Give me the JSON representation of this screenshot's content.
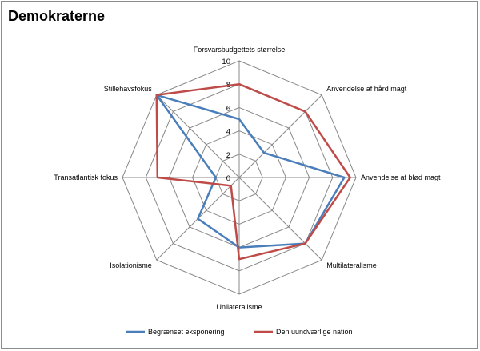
{
  "chart_data": {
    "type": "radar",
    "title": "Demokraterne",
    "axes": [
      "Forsvarsbudgettets størrelse",
      "Anvendelse af hård magt",
      "Anvendelse af blød magt",
      "Multilateralisme",
      "Unilateralisme",
      "Isolationisme",
      "Transatlantisk fokus",
      "Stillehavsfokus"
    ],
    "rlim": [
      0,
      10
    ],
    "ticks": [
      "0",
      "2",
      "4",
      "6",
      "8",
      "10"
    ],
    "tick_values": [
      0,
      2,
      4,
      6,
      8,
      10
    ],
    "grid": true,
    "legend_position": "bottom",
    "series": [
      {
        "name": "Begrænset eksponering",
        "color": "#4a7ebb",
        "values": [
          5,
          3,
          9,
          8,
          6,
          5,
          2,
          10
        ]
      },
      {
        "name": "Den uundværlige nation",
        "color": "#be4b48",
        "values": [
          8,
          8,
          9.5,
          8,
          7,
          1,
          7,
          10
        ]
      }
    ]
  }
}
